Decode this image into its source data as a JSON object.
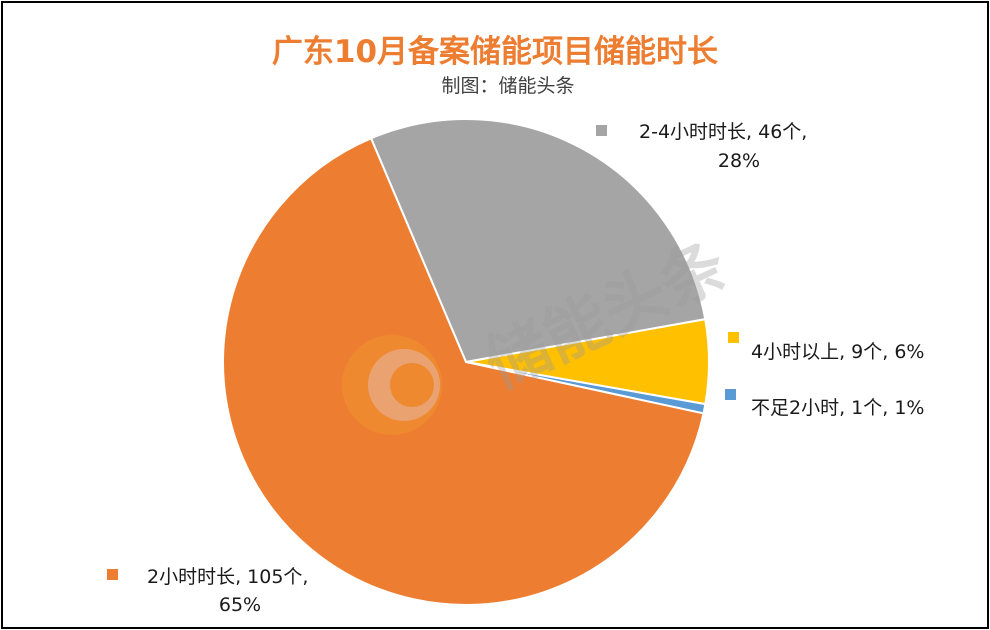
{
  "chart_data": {
    "type": "pie",
    "title": "广东10月备案储能项目储能时长",
    "subtitle": "制图：储能头条",
    "watermark": "储能头条",
    "start_angle_deg": -23,
    "direction": "clockwise",
    "slices": [
      {
        "category": "2-4小时时长",
        "count": 46,
        "percent": 28,
        "label_line1": "2-4小时时长, 46个,",
        "label_line2": "28%",
        "color": "#a5a5a5"
      },
      {
        "category": "4小时以上",
        "count": 9,
        "percent": 6,
        "label_line1": "4小时以上, 9个, 6%",
        "label_line2": "",
        "color": "#ffc000"
      },
      {
        "category": "不足2小时",
        "count": 1,
        "percent": 1,
        "label_line1": "不足2小时, 1个, 1%",
        "label_line2": "",
        "color": "#5b9bd5"
      },
      {
        "category": "2小时时长",
        "count": 105,
        "percent": 65,
        "label_line1": "2小时时长, 105个,",
        "label_line2": "65%",
        "color": "#ed7d31"
      }
    ]
  }
}
